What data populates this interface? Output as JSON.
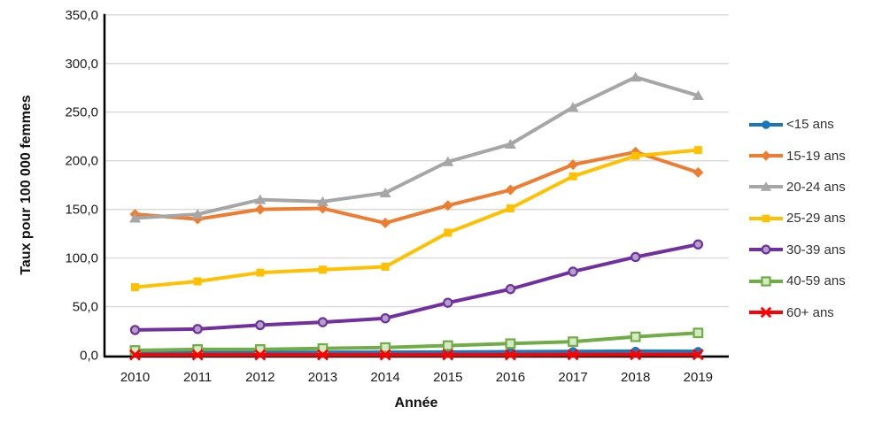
{
  "chart_data": {
    "type": "line",
    "title": "",
    "xlabel": "Année",
    "ylabel": "Taux pour 100 000 femmes",
    "x": [
      "2010",
      "2011",
      "2012",
      "2013",
      "2014",
      "2015",
      "2016",
      "2017",
      "2018",
      "2019"
    ],
    "ylim": [
      0,
      350
    ],
    "ytick_step": 50,
    "ytick_labels": [
      "0,0",
      "50,0",
      "100,0",
      "150,0",
      "200,0",
      "250,0",
      "300,0",
      "350,0"
    ],
    "grid": true,
    "legend_position": "right",
    "colors": {
      "gridline": "#D9D9D9",
      "axis": "#000000",
      "tick_text": "#1a1a1a",
      "legend_text": "#333333"
    },
    "series": [
      {
        "name": "<15 ans",
        "color": "#1776BE",
        "marker": "circle",
        "marker_fill": "#1776BE",
        "values": [
          2.9,
          2.9,
          3.0,
          3.0,
          3.1,
          3.3,
          3.6,
          3.9,
          4.2,
          4.0
        ]
      },
      {
        "name": "15-19 ans",
        "color": "#ED7D31",
        "marker": "diamond",
        "marker_fill": "#ED7D31",
        "values": [
          145,
          140,
          150,
          151,
          136,
          154,
          170,
          196,
          209,
          188
        ]
      },
      {
        "name": "20-24 ans",
        "color": "#A6A6A6",
        "marker": "triangle",
        "marker_fill": "#A6A6A6",
        "values": [
          141,
          145,
          160,
          158,
          167,
          199,
          217,
          255,
          286,
          267
        ]
      },
      {
        "name": "25-29 ans",
        "color": "#FFC000",
        "marker": "square",
        "marker_fill": "#FFC000",
        "values": [
          70,
          76,
          85,
          88,
          91,
          126,
          151,
          184,
          205,
          211
        ]
      },
      {
        "name": "30-39 ans",
        "color": "#7030A0",
        "marker": "circle-open",
        "marker_fill": "#B2A2C7",
        "values": [
          26,
          27,
          31,
          34,
          38,
          54,
          68,
          86,
          101,
          114
        ]
      },
      {
        "name": "40-59 ans",
        "color": "#70AD47",
        "marker": "square-open",
        "marker_fill": "#D6E8C4",
        "values": [
          5,
          6,
          6,
          7,
          8,
          10,
          12,
          14,
          19,
          23
        ]
      },
      {
        "name": "60+ ans",
        "color": "#FF0000",
        "marker": "x",
        "marker_fill": "#FF0000",
        "values": [
          0.4,
          0.4,
          0.4,
          0.4,
          0.4,
          0.5,
          0.5,
          0.6,
          0.7,
          0.7
        ]
      }
    ]
  }
}
